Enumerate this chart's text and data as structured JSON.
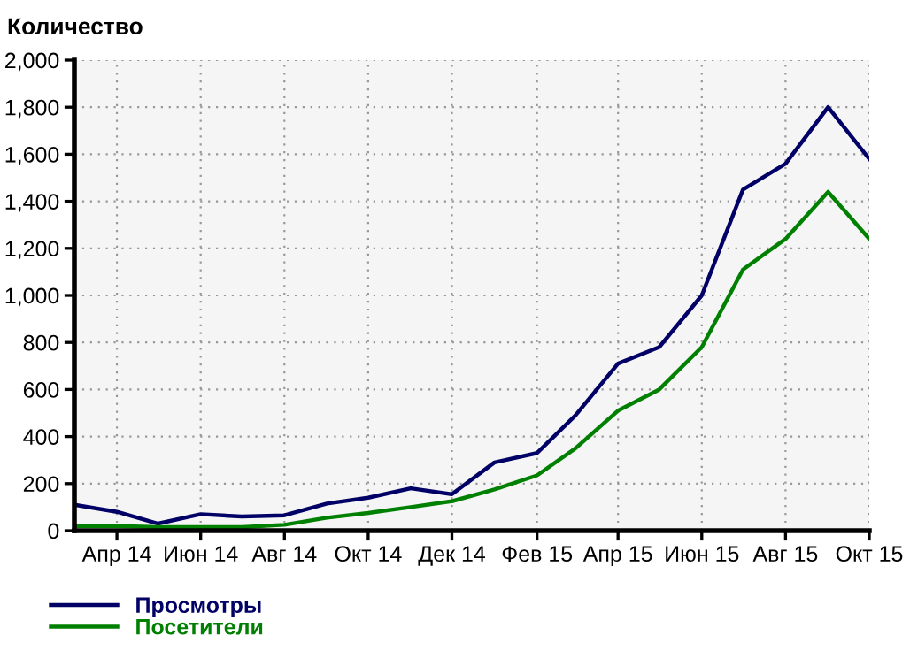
{
  "chart_data": {
    "type": "line",
    "ylabel": "Количество",
    "x": [
      "2014-03",
      "2014-04",
      "2014-05",
      "2014-06",
      "2014-07",
      "2014-08",
      "2014-09",
      "2014-10",
      "2014-11",
      "2014-12",
      "2015-01",
      "2015-02",
      "2015-03",
      "2015-04",
      "2015-05",
      "2015-06",
      "2015-07",
      "2015-08",
      "2015-09",
      "2015-10"
    ],
    "series": [
      {
        "name": "Просмотры",
        "color": "#000066",
        "values": [
          110,
          80,
          30,
          70,
          60,
          65,
          115,
          140,
          180,
          155,
          290,
          330,
          490,
          710,
          780,
          1000,
          1450,
          1560,
          1800,
          1580
        ]
      },
      {
        "name": "Посетители",
        "color": "#008000",
        "values": [
          20,
          20,
          15,
          15,
          15,
          25,
          55,
          75,
          100,
          125,
          175,
          235,
          350,
          510,
          600,
          780,
          1110,
          1240,
          1440,
          1240
        ]
      }
    ],
    "xlim": [
      "2014-03",
      "2015-10"
    ],
    "xticks": [
      {
        "value": "2014-04",
        "label": "Апр 14"
      },
      {
        "value": "2014-06",
        "label": "Июн 14"
      },
      {
        "value": "2014-08",
        "label": "Авг 14"
      },
      {
        "value": "2014-10",
        "label": "Окт 14"
      },
      {
        "value": "2014-12",
        "label": "Дек 14"
      },
      {
        "value": "2015-02",
        "label": "Фев 15"
      },
      {
        "value": "2015-04",
        "label": "Апр 15"
      },
      {
        "value": "2015-06",
        "label": "Июн 15"
      },
      {
        "value": "2015-08",
        "label": "Авг 15"
      },
      {
        "value": "2015-10",
        "label": "Окт 15"
      }
    ],
    "ylim": [
      0,
      2000
    ],
    "yticks": [
      {
        "value": 0,
        "label": "0"
      },
      {
        "value": 200,
        "label": "200"
      },
      {
        "value": 400,
        "label": "400"
      },
      {
        "value": 600,
        "label": "600"
      },
      {
        "value": 800,
        "label": "800"
      },
      {
        "value": 1000,
        "label": "1,000"
      },
      {
        "value": 1200,
        "label": "1,200"
      },
      {
        "value": 1400,
        "label": "1,400"
      },
      {
        "value": 1600,
        "label": "1,600"
      },
      {
        "value": 1800,
        "label": "1,800"
      },
      {
        "value": 2000,
        "label": "2,000"
      }
    ],
    "grid": true,
    "legend": "bottom left",
    "marker": "none",
    "line_style": "solid"
  }
}
